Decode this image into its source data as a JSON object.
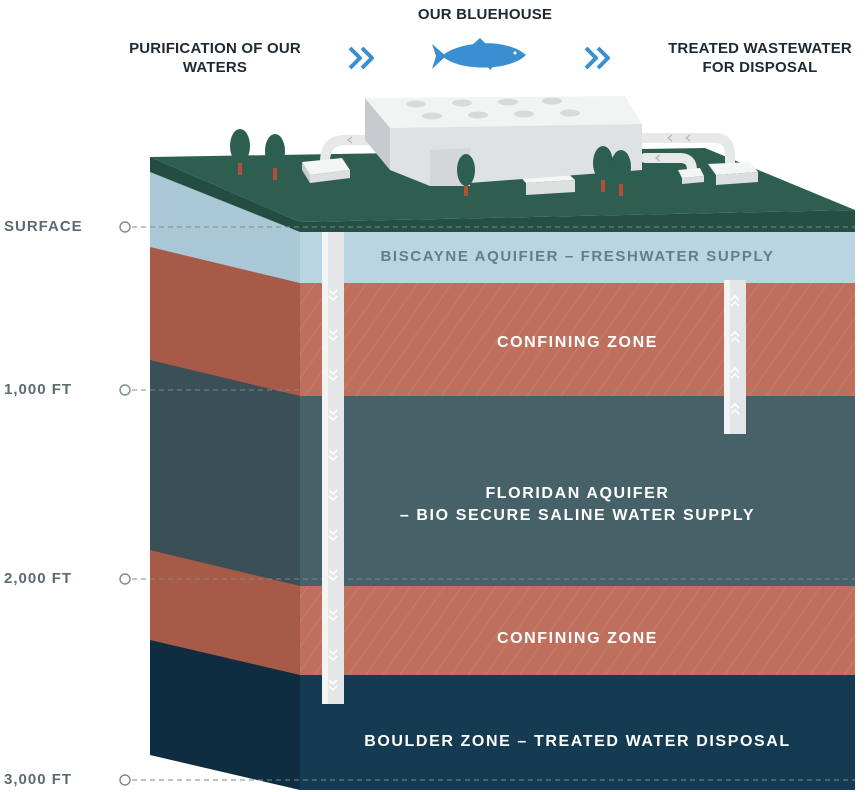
{
  "header": {
    "left": "PURIFICATION OF OUR WATERS",
    "center": "OUR BLUEHOUSE",
    "right": "TREATED WASTEWATER FOR DISPOSAL"
  },
  "depth_markers": [
    "SURFACE",
    "1,000 FT",
    "2,000 FT",
    "3,000 FT"
  ],
  "layers": {
    "biscayne": "BISCAYNE AQUIFIER – FRESHWATER SUPPLY",
    "confining_upper": "CONFINING ZONE",
    "floridan_line1": "FLORIDAN AQUIFER",
    "floridan_line2": "– BIO SECURE SALINE WATER SUPPLY",
    "confining_lower": "CONFINING ZONE",
    "boulder": "BOULDER ZONE – TREATED WATER DISPOSAL"
  },
  "icons": [
    "fish-icon",
    "chevron-right-icon",
    "tree-icon",
    "building-icon",
    "pipe-arrow-icon"
  ],
  "colors": {
    "ground_top": "#2e5e50",
    "biscayne": "#b9d5e1",
    "confining": "#c06f5c",
    "confining_side": "#a85a48",
    "floridan": "#476169",
    "floridan_side": "#3a4f56",
    "boulder": "#143b52",
    "boulder_side": "#0e2d40",
    "accent_blue": "#3a8fd0",
    "depth_text": "#5b6b72"
  }
}
